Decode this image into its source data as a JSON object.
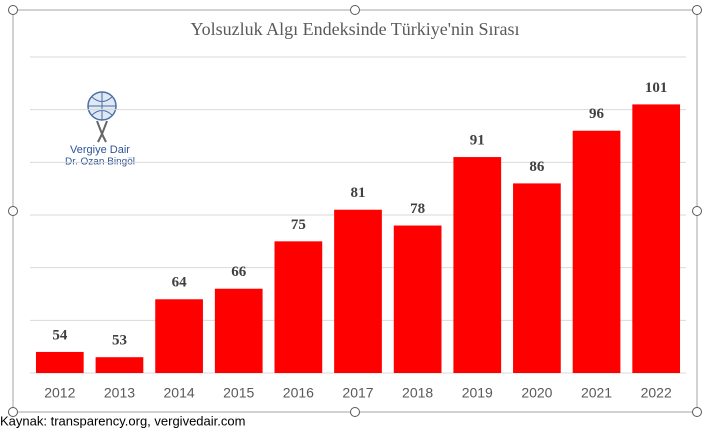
{
  "chart_data": {
    "type": "bar",
    "title": "Yolsuzluk Algı Endeksinde Türkiye'nin Sırası",
    "categories": [
      "2012",
      "2013",
      "2014",
      "2015",
      "2016",
      "2017",
      "2018",
      "2019",
      "2020",
      "2021",
      "2022"
    ],
    "values": [
      54,
      53,
      64,
      66,
      75,
      81,
      78,
      91,
      86,
      96,
      101
    ],
    "color": "#ff0000",
    "ylim": [
      50,
      110
    ],
    "yticks": [
      50,
      60,
      70,
      80,
      90,
      100,
      110
    ],
    "grid": true
  },
  "logo": {
    "name": "Vergiye Dair",
    "author": "Dr. Ozan Bingöl"
  },
  "source": "Kaynak: transparency.org, vergivedair.com"
}
